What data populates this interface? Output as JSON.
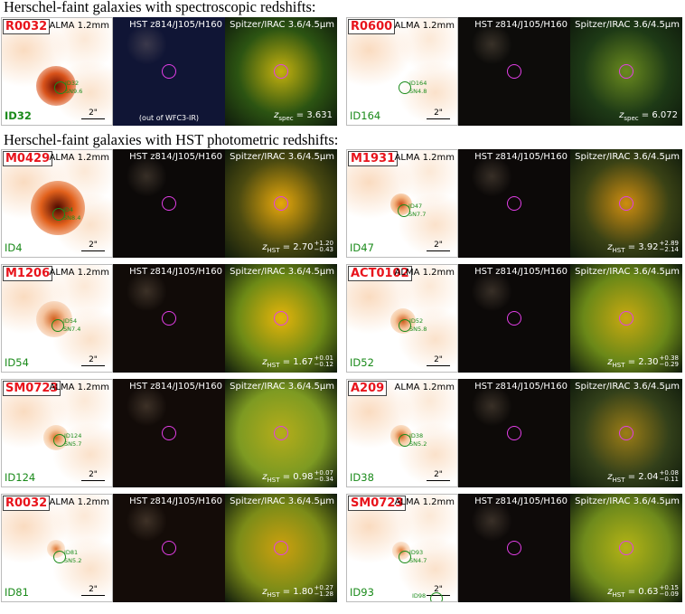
{
  "headers": {
    "spec": "Herschel-faint galaxies with spectroscopic redshifts:",
    "phot": "Herschel-faint galaxies with HST photometric redshifts:"
  },
  "common": {
    "alma_label": "ALMA 1.2mm",
    "hst_label": "HST z814/J105/H160",
    "irac_label": "Spitzer/IRAC 3.6/4.5μm",
    "scale_label": "2\""
  },
  "tiles": [
    {
      "cluster": "R0032",
      "id": "ID32",
      "gal_id": "ID32",
      "sn": "SN9.6",
      "z_prefix": "z",
      "z_sub": "spec",
      "z_val": "3.631",
      "z_sup": "",
      "z_low": "",
      "note": "(out of WFC3-IR)"
    },
    {
      "cluster": "R0600",
      "id": "ID164",
      "gal_id": "ID164",
      "sn": "SN4.8",
      "z_prefix": "z",
      "z_sub": "spec",
      "z_val": "6.072",
      "z_sup": "",
      "z_low": "",
      "note": ""
    },
    {
      "cluster": "M0429",
      "id": "ID4",
      "gal_id": "ID4",
      "sn": "SN8.4",
      "z_prefix": "z",
      "z_sub": "HST",
      "z_val": "2.70",
      "z_sup": "+1.20",
      "z_low": "−0.43",
      "note": ""
    },
    {
      "cluster": "M1931",
      "id": "ID47",
      "gal_id": "ID47",
      "sn": "SN7.7",
      "z_prefix": "z",
      "z_sub": "HST",
      "z_val": "3.92",
      "z_sup": "+2.89",
      "z_low": "−2.14",
      "note": ""
    },
    {
      "cluster": "M1206",
      "id": "ID54",
      "gal_id": "ID54",
      "sn": "SN7.4",
      "z_prefix": "z",
      "z_sub": "HST",
      "z_val": "1.67",
      "z_sup": "+0.01",
      "z_low": "−0.12",
      "note": ""
    },
    {
      "cluster": "ACT0102",
      "id": "ID52",
      "gal_id": "ID52",
      "sn": "SN5.8",
      "z_prefix": "z",
      "z_sub": "HST",
      "z_val": "2.30",
      "z_sup": "+0.38",
      "z_low": "−0.29",
      "note": ""
    },
    {
      "cluster": "SM0723",
      "id": "ID124",
      "gal_id": "ID124",
      "sn": "SN5.7",
      "z_prefix": "z",
      "z_sub": "HST",
      "z_val": "0.98",
      "z_sup": "+0.07",
      "z_low": "−0.34",
      "note": ""
    },
    {
      "cluster": "A209",
      "id": "ID38",
      "gal_id": "ID38",
      "sn": "SN5.2",
      "z_prefix": "z",
      "z_sub": "HST",
      "z_val": "2.04",
      "z_sup": "+0.08",
      "z_low": "−0.11",
      "note": ""
    },
    {
      "cluster": "R0032",
      "id": "ID81",
      "gal_id": "ID81",
      "sn": "SN5.2",
      "z_prefix": "z",
      "z_sub": "HST",
      "z_val": "1.80",
      "z_sup": "+0.27",
      "z_low": "−1.28",
      "note": ""
    },
    {
      "cluster": "SM0723",
      "id": "ID93",
      "gal_id": "ID93",
      "sn": "SN4.7",
      "z_prefix": "z",
      "z_sub": "HST",
      "z_val": "0.63",
      "z_sup": "+0.15",
      "z_low": "−0.09",
      "note": "",
      "extra_id": "ID98"
    }
  ]
}
